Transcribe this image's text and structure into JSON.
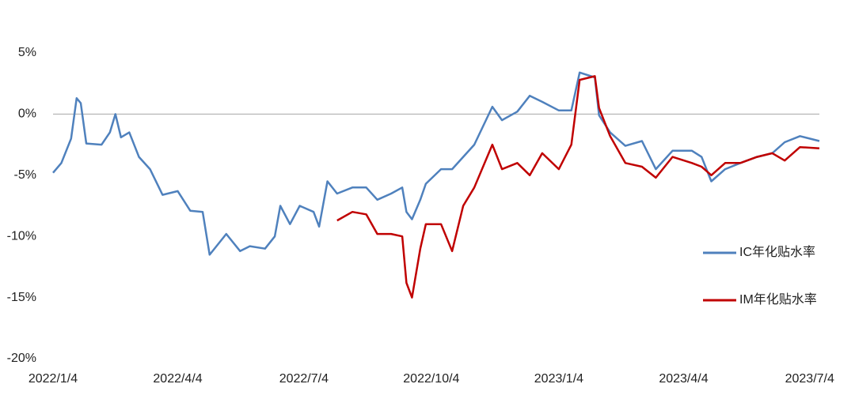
{
  "chart_data": {
    "type": "line",
    "x": [
      "2022/1/4",
      "2022/1/10",
      "2022/1/17",
      "2022/1/21",
      "2022/1/24",
      "2022/1/28",
      "2022/2/8",
      "2022/2/14",
      "2022/2/18",
      "2022/2/22",
      "2022/2/28",
      "2022/3/7",
      "2022/3/15",
      "2022/3/24",
      "2022/4/4",
      "2022/4/13",
      "2022/4/22",
      "2022/4/27",
      "2022/5/9",
      "2022/5/19",
      "2022/5/26",
      "2022/6/6",
      "2022/6/13",
      "2022/6/17",
      "2022/6/24",
      "2022/7/1",
      "2022/7/11",
      "2022/7/15",
      "2022/7/21",
      "2022/7/28",
      "2022/8/8",
      "2022/8/18",
      "2022/8/26",
      "2022/9/5",
      "2022/9/13",
      "2022/9/16",
      "2022/9/20",
      "2022/9/26",
      "2022/9/30",
      "2022/10/11",
      "2022/10/19",
      "2022/10/27",
      "2022/11/4",
      "2022/11/17",
      "2022/11/24",
      "2022/12/5",
      "2022/12/14",
      "2022/12/23",
      "2023/1/4",
      "2023/1/13",
      "2023/1/19",
      "2023/1/30",
      "2023/2/2",
      "2023/2/10",
      "2023/2/21",
      "2023/3/5",
      "2023/3/15",
      "2023/3/27",
      "2023/4/10",
      "2023/4/17",
      "2023/4/24",
      "2023/5/4",
      "2023/5/15",
      "2023/5/27",
      "2023/6/7",
      "2023/6/16",
      "2023/6/27",
      "2023/7/11"
    ],
    "series": [
      {
        "name": "IC年化贴水率",
        "color": "#4f81bd",
        "values": [
          -4.8,
          -4.0,
          -2.0,
          1.3,
          0.9,
          -2.4,
          -2.5,
          -1.5,
          0.0,
          -1.9,
          -1.5,
          -3.5,
          -4.5,
          -6.6,
          -6.3,
          -7.9,
          -8.0,
          -11.5,
          -9.8,
          -11.2,
          -10.8,
          -11.0,
          -10.0,
          -7.5,
          -9.0,
          -7.5,
          -8.0,
          -9.2,
          -5.5,
          -6.5,
          -6.0,
          -6.0,
          -7.0,
          -6.5,
          -6.0,
          -8.0,
          -8.6,
          -7.0,
          -5.7,
          -4.5,
          -4.5,
          -3.5,
          -2.5,
          0.6,
          -0.5,
          0.2,
          1.5,
          1.0,
          0.3,
          0.3,
          3.4,
          3.0,
          -0.1,
          -1.5,
          -2.6,
          -2.2,
          -4.5,
          -3.0,
          -3.0,
          -3.5,
          -5.5,
          -4.5,
          -4.0,
          -3.5,
          -3.2,
          -2.3,
          -1.8,
          -2.2
        ]
      },
      {
        "name": "IM年化贴水率",
        "color": "#c00000",
        "values": [
          null,
          null,
          null,
          null,
          null,
          null,
          null,
          null,
          null,
          null,
          null,
          null,
          null,
          null,
          null,
          null,
          null,
          null,
          null,
          null,
          null,
          null,
          null,
          null,
          null,
          null,
          null,
          null,
          null,
          -8.7,
          -8.0,
          -8.2,
          -9.8,
          -9.8,
          -10.0,
          -13.8,
          -15.0,
          -11.0,
          -9.0,
          -9.0,
          -11.2,
          -7.5,
          -6.0,
          -2.5,
          -4.5,
          -4.0,
          -5.0,
          -3.2,
          -4.5,
          -2.5,
          2.8,
          3.1,
          0.5,
          -1.8,
          -4.0,
          -4.3,
          -5.2,
          -3.5,
          -4.0,
          -4.3,
          -5.0,
          -4.0,
          -4.0,
          -3.5,
          -3.2,
          -3.8,
          -2.7,
          -2.8
        ]
      }
    ],
    "xlim": [
      "2022/1/4",
      "2023/7/11"
    ],
    "xticks": [
      "2022/1/4",
      "2022/4/4",
      "2022/7/4",
      "2022/10/4",
      "2023/1/4",
      "2023/4/4",
      "2023/7/4"
    ],
    "ylim": [
      -20,
      5
    ],
    "yticks": [
      {
        "value": 5,
        "label": "5%"
      },
      {
        "value": 0,
        "label": "0%"
      },
      {
        "value": -5,
        "label": "-5%"
      },
      {
        "value": -10,
        "label": "-10%"
      },
      {
        "value": -15,
        "label": "-15%"
      },
      {
        "value": -20,
        "label": "-20%"
      }
    ],
    "grid_at_zero": true,
    "legend": "right"
  }
}
